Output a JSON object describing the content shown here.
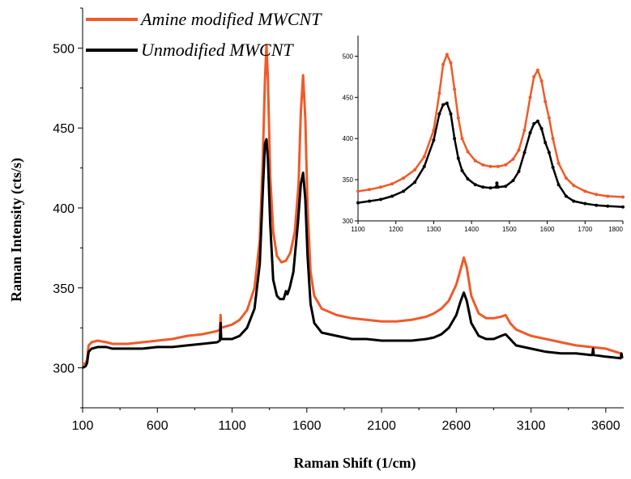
{
  "chart_data": [
    {
      "type": "line",
      "xlabel": "Raman Shift (1/cm)",
      "ylabel": "Raman Intensity (cts/s)",
      "xlim": [
        100,
        3720
      ],
      "ylim": [
        275,
        525
      ],
      "x_ticks": [
        100,
        600,
        1100,
        1600,
        2100,
        2600,
        3100,
        3600
      ],
      "y_ticks": [
        300,
        350,
        400,
        450,
        500
      ],
      "legend_position": "top-left",
      "grid": false,
      "series": [
        {
          "name": "Amine modified MWCNT",
          "color": "#f05a28",
          "points": [
            [
              100,
              302
            ],
            [
              120,
              303
            ],
            [
              130,
              305
            ],
            [
              140,
              314
            ],
            [
              160,
              316
            ],
            [
              200,
              317
            ],
            [
              260,
              316
            ],
            [
              300,
              315
            ],
            [
              400,
              315
            ],
            [
              500,
              316
            ],
            [
              600,
              317
            ],
            [
              700,
              318
            ],
            [
              800,
              320
            ],
            [
              900,
              321
            ],
            [
              1000,
              323
            ],
            [
              1020,
              324
            ],
            [
              1023,
              333
            ],
            [
              1026,
              325
            ],
            [
              1100,
              327
            ],
            [
              1150,
              330
            ],
            [
              1200,
              336
            ],
            [
              1250,
              350
            ],
            [
              1285,
              380
            ],
            [
              1305,
              430
            ],
            [
              1320,
              480
            ],
            [
              1330,
              502
            ],
            [
              1340,
              480
            ],
            [
              1355,
              420
            ],
            [
              1375,
              385
            ],
            [
              1400,
              370
            ],
            [
              1430,
              366
            ],
            [
              1460,
              367
            ],
            [
              1490,
              372
            ],
            [
              1520,
              385
            ],
            [
              1545,
              415
            ],
            [
              1560,
              460
            ],
            [
              1575,
              483
            ],
            [
              1590,
              455
            ],
            [
              1605,
              400
            ],
            [
              1625,
              360
            ],
            [
              1650,
              345
            ],
            [
              1700,
              337
            ],
            [
              1800,
              333
            ],
            [
              1900,
              331
            ],
            [
              2000,
              330
            ],
            [
              2100,
              329
            ],
            [
              2200,
              329
            ],
            [
              2300,
              330
            ],
            [
              2400,
              332
            ],
            [
              2450,
              334
            ],
            [
              2500,
              337
            ],
            [
              2550,
              342
            ],
            [
              2600,
              352
            ],
            [
              2630,
              362
            ],
            [
              2650,
              369
            ],
            [
              2670,
              363
            ],
            [
              2700,
              345
            ],
            [
              2750,
              334
            ],
            [
              2800,
              331
            ],
            [
              2850,
              331
            ],
            [
              2900,
              332
            ],
            [
              2930,
              333
            ],
            [
              2960,
              328
            ],
            [
              3000,
              324
            ],
            [
              3100,
              320
            ],
            [
              3200,
              318
            ],
            [
              3300,
              316
            ],
            [
              3400,
              314
            ],
            [
              3500,
              313
            ],
            [
              3600,
              312
            ],
            [
              3700,
              309
            ]
          ]
        },
        {
          "name": "Unmodified MWCNT",
          "color": "#000000",
          "points": [
            [
              100,
              300
            ],
            [
              120,
              301
            ],
            [
              130,
              303
            ],
            [
              140,
              310
            ],
            [
              160,
              312
            ],
            [
              200,
              313
            ],
            [
              260,
              313
            ],
            [
              300,
              312
            ],
            [
              400,
              312
            ],
            [
              500,
              312
            ],
            [
              600,
              313
            ],
            [
              700,
              313
            ],
            [
              800,
              314
            ],
            [
              900,
              315
            ],
            [
              1000,
              316
            ],
            [
              1018,
              317
            ],
            [
              1023,
              328
            ],
            [
              1027,
              318
            ],
            [
              1100,
              318
            ],
            [
              1150,
              320
            ],
            [
              1200,
              325
            ],
            [
              1250,
              337
            ],
            [
              1285,
              365
            ],
            [
              1305,
              410
            ],
            [
              1320,
              440
            ],
            [
              1330,
              443
            ],
            [
              1340,
              430
            ],
            [
              1355,
              390
            ],
            [
              1375,
              355
            ],
            [
              1400,
              345
            ],
            [
              1420,
              343
            ],
            [
              1445,
              343
            ],
            [
              1460,
              348
            ],
            [
              1470,
              346
            ],
            [
              1485,
              350
            ],
            [
              1510,
              360
            ],
            [
              1540,
              390
            ],
            [
              1560,
              415
            ],
            [
              1575,
              422
            ],
            [
              1590,
              405
            ],
            [
              1605,
              370
            ],
            [
              1625,
              340
            ],
            [
              1650,
              328
            ],
            [
              1700,
              322
            ],
            [
              1800,
              320
            ],
            [
              1900,
              318
            ],
            [
              2000,
              318
            ],
            [
              2100,
              317
            ],
            [
              2200,
              317
            ],
            [
              2300,
              317
            ],
            [
              2400,
              318
            ],
            [
              2450,
              319
            ],
            [
              2500,
              321
            ],
            [
              2550,
              325
            ],
            [
              2600,
              333
            ],
            [
              2630,
              342
            ],
            [
              2650,
              347
            ],
            [
              2670,
              342
            ],
            [
              2700,
              328
            ],
            [
              2750,
              320
            ],
            [
              2800,
              318
            ],
            [
              2850,
              318
            ],
            [
              2900,
              320
            ],
            [
              2930,
              321
            ],
            [
              2960,
              318
            ],
            [
              3000,
              314
            ],
            [
              3100,
              312
            ],
            [
              3200,
              310
            ],
            [
              3300,
              309
            ],
            [
              3400,
              309
            ],
            [
              3500,
              308
            ],
            [
              3510,
              308
            ],
            [
              3515,
              312
            ],
            [
              3520,
              308
            ],
            [
              3600,
              307
            ],
            [
              3700,
              306
            ],
            [
              3705,
              309
            ],
            [
              3710,
              306
            ]
          ]
        }
      ]
    },
    {
      "type": "scatter",
      "xlabel": "",
      "ylabel": "",
      "xlim": [
        1100,
        1800
      ],
      "ylim": [
        300,
        525
      ],
      "x_ticks": [
        1100,
        1200,
        1300,
        1400,
        1500,
        1600,
        1700,
        1800
      ],
      "y_ticks": [
        300,
        350,
        400,
        450,
        500
      ],
      "grid": false,
      "series": [
        {
          "name": "",
          "color": "#f05a28",
          "points": [
            [
              1100,
              336
            ],
            [
              1130,
              338
            ],
            [
              1160,
              341
            ],
            [
              1190,
              345
            ],
            [
              1220,
              352
            ],
            [
              1250,
              362
            ],
            [
              1275,
              378
            ],
            [
              1300,
              410
            ],
            [
              1315,
              455
            ],
            [
              1325,
              490
            ],
            [
              1335,
              502
            ],
            [
              1345,
              492
            ],
            [
              1355,
              460
            ],
            [
              1365,
              425
            ],
            [
              1375,
              400
            ],
            [
              1390,
              384
            ],
            [
              1410,
              373
            ],
            [
              1430,
              368
            ],
            [
              1450,
              366
            ],
            [
              1470,
              366
            ],
            [
              1490,
              368
            ],
            [
              1510,
              375
            ],
            [
              1525,
              386
            ],
            [
              1540,
              410
            ],
            [
              1555,
              450
            ],
            [
              1565,
              475
            ],
            [
              1575,
              483
            ],
            [
              1585,
              470
            ],
            [
              1595,
              445
            ],
            [
              1605,
              425
            ],
            [
              1615,
              400
            ],
            [
              1630,
              370
            ],
            [
              1650,
              352
            ],
            [
              1670,
              343
            ],
            [
              1700,
              336
            ],
            [
              1730,
              332
            ],
            [
              1760,
              330
            ],
            [
              1800,
              329
            ]
          ]
        },
        {
          "name": "",
          "color": "#000000",
          "points": [
            [
              1100,
              322
            ],
            [
              1130,
              324
            ],
            [
              1160,
              326
            ],
            [
              1190,
              330
            ],
            [
              1220,
              336
            ],
            [
              1250,
              347
            ],
            [
              1275,
              366
            ],
            [
              1300,
              398
            ],
            [
              1315,
              430
            ],
            [
              1325,
              441
            ],
            [
              1335,
              443
            ],
            [
              1345,
              430
            ],
            [
              1355,
              400
            ],
            [
              1365,
              376
            ],
            [
              1375,
              361
            ],
            [
              1390,
              351
            ],
            [
              1410,
              344
            ],
            [
              1430,
              341
            ],
            [
              1450,
              340
            ],
            [
              1465,
              341
            ],
            [
              1467,
              346
            ],
            [
              1470,
              341
            ],
            [
              1490,
              342
            ],
            [
              1510,
              349
            ],
            [
              1525,
              360
            ],
            [
              1540,
              383
            ],
            [
              1555,
              407
            ],
            [
              1565,
              418
            ],
            [
              1575,
              421
            ],
            [
              1585,
              412
            ],
            [
              1595,
              395
            ],
            [
              1605,
              383
            ],
            [
              1615,
              365
            ],
            [
              1630,
              344
            ],
            [
              1650,
              330
            ],
            [
              1670,
              324
            ],
            [
              1700,
              321
            ],
            [
              1730,
              319
            ],
            [
              1760,
              318
            ],
            [
              1800,
              317
            ]
          ]
        }
      ]
    }
  ]
}
